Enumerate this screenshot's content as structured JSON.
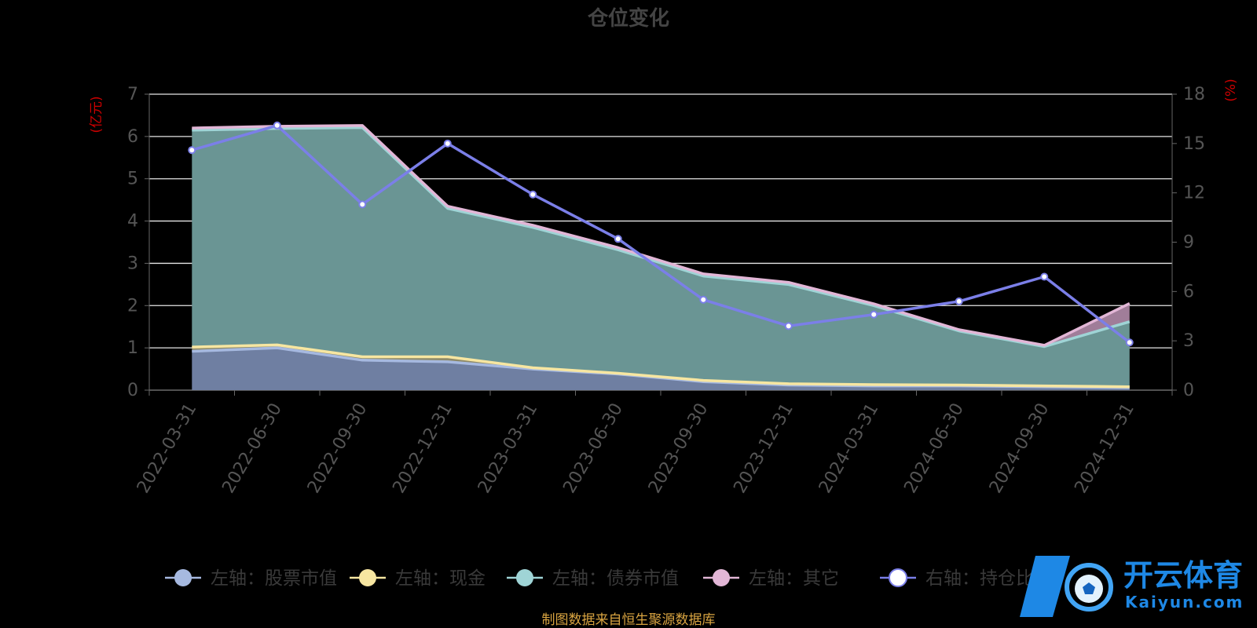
{
  "chart_data": {
    "type": "area",
    "title": "仓位变化",
    "y_left_unit": "(亿元)",
    "y_right_unit": "(%)",
    "categories": [
      "2022-03-31",
      "2022-06-30",
      "2022-09-30",
      "2022-12-31",
      "2023-03-31",
      "2023-06-30",
      "2023-09-30",
      "2023-12-31",
      "2024-03-31",
      "2024-06-30",
      "2024-09-30",
      "2024-12-31"
    ],
    "left_axis": {
      "min": 0,
      "max": 7,
      "ticks": [
        "0",
        "1",
        "2",
        "3",
        "4",
        "5",
        "6",
        "7"
      ]
    },
    "right_axis": {
      "min": 0,
      "max": 18,
      "ticks": [
        "0",
        "3",
        "6",
        "9",
        "12",
        "15",
        "18"
      ]
    },
    "stacked_series": [
      {
        "name": "左轴：股票市值",
        "color": "#a6b9e0",
        "values": [
          0.92,
          1.0,
          0.71,
          0.67,
          0.5,
          0.38,
          0.2,
          0.12,
          0.1,
          0.1,
          0.08,
          0.06
        ]
      },
      {
        "name": "左轴：现金",
        "color": "#f7e6a1",
        "values": [
          0.1,
          0.07,
          0.08,
          0.12,
          0.03,
          0.02,
          0.03,
          0.03,
          0.03,
          0.02,
          0.02,
          0.02
        ]
      },
      {
        "name": "左轴：债券市值",
        "color": "#9fd4d6",
        "values": [
          5.13,
          5.12,
          5.42,
          3.51,
          3.32,
          2.92,
          2.47,
          2.35,
          1.87,
          1.28,
          0.93,
          1.54
        ]
      },
      {
        "name": "左轴：其它",
        "color": "#e2b6d6",
        "values": [
          0.05,
          0.05,
          0.05,
          0.05,
          0.05,
          0.05,
          0.05,
          0.05,
          0.04,
          0.03,
          0.03,
          0.43
        ]
      }
    ],
    "line_series": {
      "name": "右轴：持仓比例",
      "color": "#7b7fe8",
      "values": [
        14.6,
        16.1,
        11.3,
        15.0,
        11.9,
        9.2,
        5.5,
        3.9,
        4.6,
        5.4,
        6.9,
        2.9
      ]
    },
    "grid": true,
    "legend_position": "bottom"
  },
  "footnote": "制图数据来自恒生聚源数据库",
  "watermark": {
    "text": "开云体育",
    "subtext": "Kaiyun.com"
  }
}
